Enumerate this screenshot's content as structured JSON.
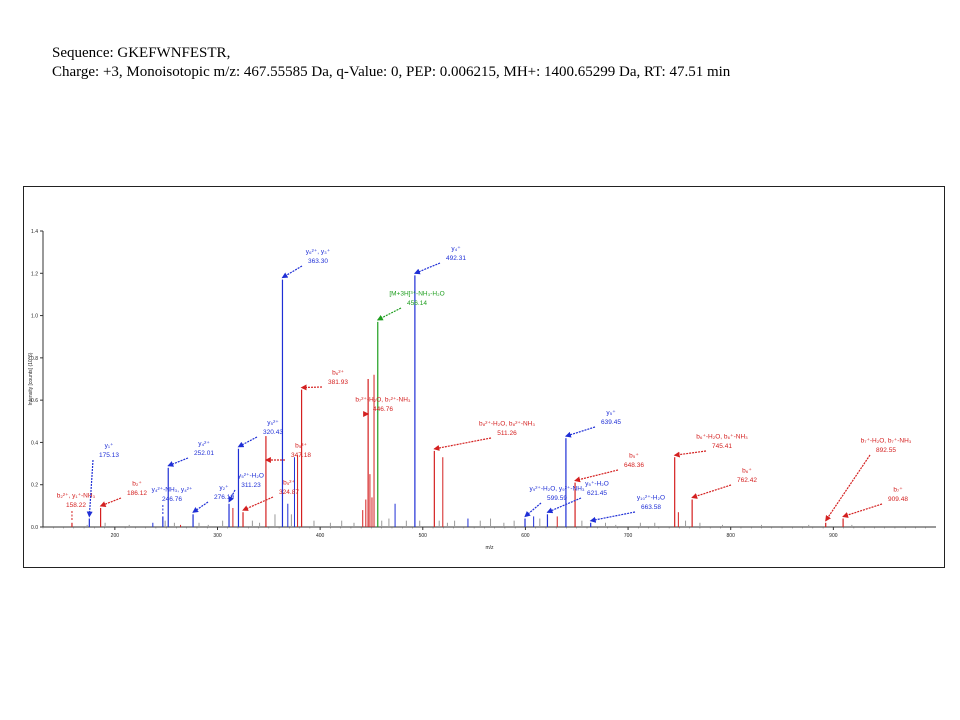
{
  "header": {
    "line1": "Sequence: GKEFWNFESTR,",
    "line2": "Charge: +3, Monoisotopic m/z: 467.55585 Da, q-Value: 0, PEP: 0.006215, MH+: 1400.65299 Da, RT: 47.51 min"
  },
  "colors": {
    "blue": "#1f2fd6",
    "red": "#d42020",
    "green": "#1e9e1e",
    "noise": "#9a9a9a"
  },
  "chart_data": {
    "type": "bar",
    "xlabel": "m/z",
    "ylabel": "Intensity [counts] (10^6)",
    "xlim": [
      130,
      1000
    ],
    "ylim": [
      0,
      1.4
    ],
    "xticks": [
      "200",
      "300",
      "400",
      "500",
      "600",
      "700",
      "800",
      "900"
    ],
    "yticks": [
      "0.0",
      "0.2",
      "0.4",
      "0.6",
      "0.8",
      "1.0",
      "1.2",
      "1.4"
    ],
    "peaks": [
      {
        "x": 158.22,
        "y": 0.02,
        "color": "red",
        "label": [
          "b₂²⁺, y₁⁺-NH₃",
          "158.22"
        ]
      },
      {
        "x": 175.13,
        "y": 0.04,
        "color": "blue",
        "label": [
          "y₁⁺",
          "175.13"
        ]
      },
      {
        "x": 186.12,
        "y": 0.09,
        "color": "red",
        "label": [
          "b₂⁺",
          "186.12"
        ]
      },
      {
        "x": 246.76,
        "y": 0.05,
        "color": "blue",
        "label": [
          "y₄²⁺-NH₃, y₄²⁺",
          "246.76"
        ]
      },
      {
        "x": 252.01,
        "y": 0.28,
        "color": "blue",
        "label": [
          "y₄²⁺",
          "252.01"
        ]
      },
      {
        "x": 276.19,
        "y": 0.06,
        "color": "blue",
        "label": [
          "y₂⁺",
          "276.19"
        ]
      },
      {
        "x": 311.23,
        "y": 0.11,
        "color": "blue",
        "label": [
          "y₅²⁺-H₂O",
          "311.23"
        ]
      },
      {
        "x": 320.43,
        "y": 0.37,
        "color": "blue",
        "label": [
          "y₅²⁺",
          "320.43"
        ]
      },
      {
        "x": 324.87,
        "y": 0.07,
        "color": "red",
        "label": [
          "b₅²⁺",
          "324.87"
        ]
      },
      {
        "x": 347.18,
        "y": 0.43,
        "color": "red",
        "label": [
          "b₅³⁺",
          "347.18"
        ]
      },
      {
        "x": 363.3,
        "y": 1.17,
        "color": "blue",
        "label": [
          "y₆²⁺, y₃⁺",
          "363.30"
        ]
      },
      {
        "x": 381.93,
        "y": 0.65,
        "color": "red",
        "label": [
          "b₆²⁺",
          "381.93"
        ]
      },
      {
        "x": 446.76,
        "y": 0.7,
        "color": "red",
        "label": [
          "b₇²⁺-H₂O, b₇²⁺-NH₃",
          "446.76"
        ]
      },
      {
        "x": 456.14,
        "y": 0.97,
        "color": "green",
        "label": [
          "[M+3H]³⁺-NH₃-H₂O",
          "456.14"
        ]
      },
      {
        "x": 492.31,
        "y": 1.19,
        "color": "blue",
        "label": [
          "y₄⁺",
          "492.31"
        ]
      },
      {
        "x": 511.26,
        "y": 0.36,
        "color": "red",
        "label": [
          "b₈²⁺-H₂O, b₈²⁺-NH₃",
          "511.26"
        ]
      },
      {
        "x": 599.59,
        "y": 0.04,
        "color": "blue",
        "label": [
          "y₉²⁺-H₂O, y₉²⁺-NH₃",
          "599.59"
        ]
      },
      {
        "x": 621.45,
        "y": 0.06,
        "color": "blue",
        "label": [
          "y₅⁺-H₂O",
          "621.45"
        ]
      },
      {
        "x": 639.45,
        "y": 0.42,
        "color": "blue",
        "label": [
          "y₅⁺",
          "639.45"
        ]
      },
      {
        "x": 648.36,
        "y": 0.21,
        "color": "red",
        "label": [
          "b₅⁺",
          "648.36"
        ]
      },
      {
        "x": 663.58,
        "y": 0.02,
        "color": "blue",
        "label": [
          "y₁₀²⁺-H₂O",
          "663.58"
        ]
      },
      {
        "x": 745.41,
        "y": 0.33,
        "color": "red",
        "label": [
          "b₆⁺-H₂O, b₆⁺-NH₃",
          "745.41"
        ]
      },
      {
        "x": 762.42,
        "y": 0.13,
        "color": "red",
        "label": [
          "b₆⁺",
          "762.42"
        ]
      },
      {
        "x": 892.55,
        "y": 0.02,
        "color": "red",
        "label": [
          "b₇⁺-H₂O, b₇⁺-NH₃",
          "892.55"
        ]
      },
      {
        "x": 909.48,
        "y": 0.04,
        "color": "red",
        "label": [
          "b₇⁺",
          "909.48"
        ]
      }
    ],
    "extra_peaks": [
      {
        "x": 173.0,
        "y": 0.01,
        "color": "noise"
      },
      {
        "x": 190.5,
        "y": 0.02,
        "color": "noise"
      },
      {
        "x": 214.0,
        "y": 0.01,
        "color": "noise"
      },
      {
        "x": 237.0,
        "y": 0.02,
        "color": "blue"
      },
      {
        "x": 249.0,
        "y": 0.03,
        "color": "noise"
      },
      {
        "x": 258.0,
        "y": 0.02,
        "color": "noise"
      },
      {
        "x": 264.0,
        "y": 0.01,
        "color": "red"
      },
      {
        "x": 282.0,
        "y": 0.02,
        "color": "noise"
      },
      {
        "x": 291.0,
        "y": 0.01,
        "color": "noise"
      },
      {
        "x": 305.0,
        "y": 0.03,
        "color": "noise"
      },
      {
        "x": 315.0,
        "y": 0.09,
        "color": "red"
      },
      {
        "x": 334.0,
        "y": 0.03,
        "color": "noise"
      },
      {
        "x": 341.0,
        "y": 0.02,
        "color": "noise"
      },
      {
        "x": 356.0,
        "y": 0.06,
        "color": "noise"
      },
      {
        "x": 368.5,
        "y": 0.11,
        "color": "blue"
      },
      {
        "x": 372.0,
        "y": 0.06,
        "color": "noise"
      },
      {
        "x": 375.0,
        "y": 0.33,
        "color": "blue"
      },
      {
        "x": 378.0,
        "y": 0.34,
        "color": "red"
      },
      {
        "x": 394.0,
        "y": 0.03,
        "color": "noise"
      },
      {
        "x": 410.0,
        "y": 0.02,
        "color": "noise"
      },
      {
        "x": 421.0,
        "y": 0.03,
        "color": "noise"
      },
      {
        "x": 433.0,
        "y": 0.02,
        "color": "noise"
      },
      {
        "x": 441.5,
        "y": 0.08,
        "color": "red"
      },
      {
        "x": 444.5,
        "y": 0.13,
        "color": "red"
      },
      {
        "x": 448.5,
        "y": 0.25,
        "color": "red"
      },
      {
        "x": 450.5,
        "y": 0.14,
        "color": "red"
      },
      {
        "x": 452.5,
        "y": 0.72,
        "color": "red"
      },
      {
        "x": 460.0,
        "y": 0.03,
        "color": "noise"
      },
      {
        "x": 467.0,
        "y": 0.04,
        "color": "noise"
      },
      {
        "x": 473.0,
        "y": 0.11,
        "color": "blue"
      },
      {
        "x": 484.0,
        "y": 0.03,
        "color": "noise"
      },
      {
        "x": 497.0,
        "y": 0.03,
        "color": "noise"
      },
      {
        "x": 516.0,
        "y": 0.03,
        "color": "noise"
      },
      {
        "x": 519.5,
        "y": 0.33,
        "color": "red"
      },
      {
        "x": 524.0,
        "y": 0.02,
        "color": "noise"
      },
      {
        "x": 531.0,
        "y": 0.03,
        "color": "noise"
      },
      {
        "x": 544.0,
        "y": 0.04,
        "color": "blue"
      },
      {
        "x": 556.0,
        "y": 0.03,
        "color": "noise"
      },
      {
        "x": 566.0,
        "y": 0.04,
        "color": "noise"
      },
      {
        "x": 579.0,
        "y": 0.02,
        "color": "noise"
      },
      {
        "x": 589.0,
        "y": 0.03,
        "color": "noise"
      },
      {
        "x": 608.0,
        "y": 0.05,
        "color": "blue"
      },
      {
        "x": 614.0,
        "y": 0.04,
        "color": "noise"
      },
      {
        "x": 631.0,
        "y": 0.05,
        "color": "red"
      },
      {
        "x": 655.0,
        "y": 0.03,
        "color": "noise"
      },
      {
        "x": 678.0,
        "y": 0.02,
        "color": "noise"
      },
      {
        "x": 688.0,
        "y": 0.01,
        "color": "noise"
      },
      {
        "x": 712.0,
        "y": 0.02,
        "color": "noise"
      },
      {
        "x": 726.0,
        "y": 0.02,
        "color": "noise"
      },
      {
        "x": 749.0,
        "y": 0.07,
        "color": "red"
      },
      {
        "x": 756.0,
        "y": 0.03,
        "color": "noise"
      },
      {
        "x": 770.0,
        "y": 0.02,
        "color": "noise"
      },
      {
        "x": 792.0,
        "y": 0.01,
        "color": "noise"
      },
      {
        "x": 830.0,
        "y": 0.01,
        "color": "noise"
      },
      {
        "x": 876.0,
        "y": 0.01,
        "color": "noise"
      },
      {
        "x": 918.0,
        "y": 0.01,
        "color": "noise"
      }
    ]
  }
}
